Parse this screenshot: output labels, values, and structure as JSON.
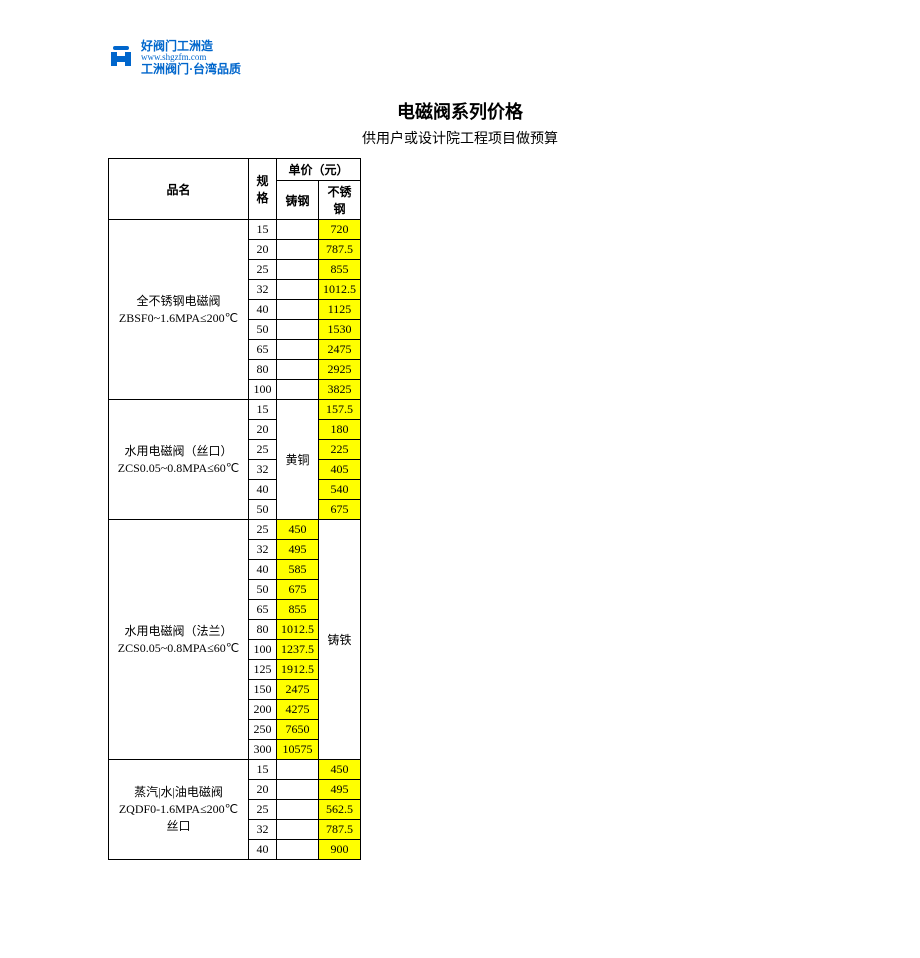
{
  "logo": {
    "line1": "好阀门工洲造",
    "line2": "www.shgzfm.com",
    "line3": "工洲阀门·台湾品质",
    "iconColor": "#0066cc"
  },
  "title": "电磁阀系列价格",
  "subtitle": "供用户或设计院工程项目做预算",
  "headers": {
    "name": "品名",
    "spec": "规格",
    "unitPrice": "单价（元）",
    "castSteel": "铸钢",
    "stainless": "不锈钢"
  },
  "highlightColor": "#ffff00",
  "groups": [
    {
      "nameLine1": "全不锈钢电磁阀",
      "nameLine2": "ZBSF0~1.6MPA≤200℃",
      "col1Merged": null,
      "col2Merged": null,
      "rows": [
        {
          "spec": "15",
          "c1": "",
          "c2": "720",
          "hl2": true
        },
        {
          "spec": "20",
          "c1": "",
          "c2": "787.5",
          "hl2": true
        },
        {
          "spec": "25",
          "c1": "",
          "c2": "855",
          "hl2": true
        },
        {
          "spec": "32",
          "c1": "",
          "c2": "1012.5",
          "hl2": true
        },
        {
          "spec": "40",
          "c1": "",
          "c2": "1125",
          "hl2": true
        },
        {
          "spec": "50",
          "c1": "",
          "c2": "1530",
          "hl2": true
        },
        {
          "spec": "65",
          "c1": "",
          "c2": "2475",
          "hl2": true
        },
        {
          "spec": "80",
          "c1": "",
          "c2": "2925",
          "hl2": true
        },
        {
          "spec": "100",
          "c1": "",
          "c2": "3825",
          "hl2": true
        }
      ]
    },
    {
      "nameLine1": "水用电磁阀（丝口）",
      "nameLine2": "ZCS0.05~0.8MPA≤60℃",
      "col1Merged": "黄铜",
      "col2Merged": null,
      "rows": [
        {
          "spec": "15",
          "c1": null,
          "c2": "157.5",
          "hl2": true
        },
        {
          "spec": "20",
          "c1": null,
          "c2": "180",
          "hl2": true
        },
        {
          "spec": "25",
          "c1": null,
          "c2": "225",
          "hl2": true
        },
        {
          "spec": "32",
          "c1": null,
          "c2": "405",
          "hl2": true
        },
        {
          "spec": "40",
          "c1": null,
          "c2": "540",
          "hl2": true
        },
        {
          "spec": "50",
          "c1": null,
          "c2": "675",
          "hl2": true
        }
      ]
    },
    {
      "nameLine1": "水用电磁阀（法兰）",
      "nameLine2": "ZCS0.05~0.8MPA≤60℃",
      "col1Merged": null,
      "col2Merged": "铸铁",
      "rows": [
        {
          "spec": "25",
          "c1": "450",
          "c2": null,
          "hl1": true
        },
        {
          "spec": "32",
          "c1": "495",
          "c2": null,
          "hl1": true
        },
        {
          "spec": "40",
          "c1": "585",
          "c2": null,
          "hl1": true
        },
        {
          "spec": "50",
          "c1": "675",
          "c2": null,
          "hl1": true
        },
        {
          "spec": "65",
          "c1": "855",
          "c2": null,
          "hl1": true
        },
        {
          "spec": "80",
          "c1": "1012.5",
          "c2": null,
          "hl1": true
        },
        {
          "spec": "100",
          "c1": "1237.5",
          "c2": null,
          "hl1": true
        },
        {
          "spec": "125",
          "c1": "1912.5",
          "c2": null,
          "hl1": true
        },
        {
          "spec": "150",
          "c1": "2475",
          "c2": null,
          "hl1": true
        },
        {
          "spec": "200",
          "c1": "4275",
          "c2": null,
          "hl1": true
        },
        {
          "spec": "250",
          "c1": "7650",
          "c2": null,
          "hl1": true
        },
        {
          "spec": "300",
          "c1": "10575",
          "c2": null,
          "hl1": true
        }
      ]
    },
    {
      "nameLine1": "蒸汽|水|油电磁阀",
      "nameLine2": "ZQDF0-1.6MPA≤200℃",
      "nameLine3": "丝口",
      "col1Merged": null,
      "col2Merged": null,
      "rows": [
        {
          "spec": "15",
          "c1": "",
          "c2": "450",
          "hl2": true
        },
        {
          "spec": "20",
          "c1": "",
          "c2": "495",
          "hl2": true
        },
        {
          "spec": "25",
          "c1": "",
          "c2": "562.5",
          "hl2": true
        },
        {
          "spec": "32",
          "c1": "",
          "c2": "787.5",
          "hl2": true
        },
        {
          "spec": "40",
          "c1": "",
          "c2": "900",
          "hl2": true
        }
      ]
    }
  ]
}
